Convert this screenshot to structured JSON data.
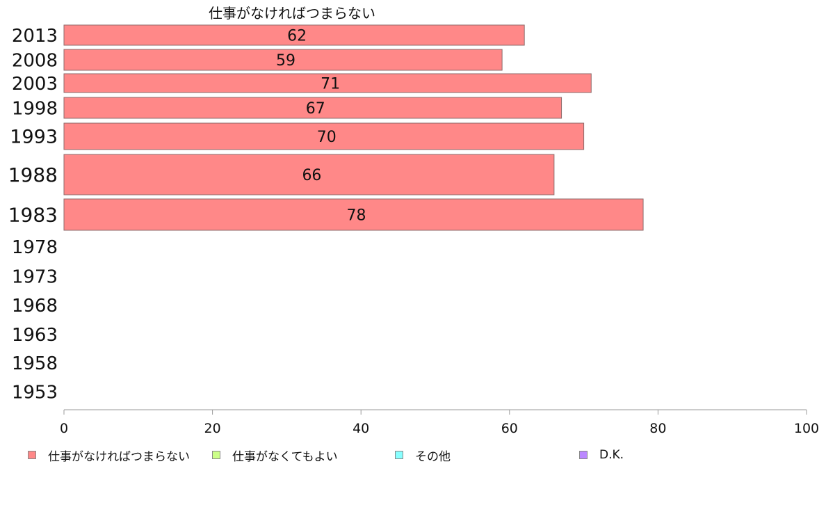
{
  "chart_data": {
    "type": "bar",
    "orientation": "horizontal",
    "title": "仕事がなければつまらない",
    "categories": [
      "2013",
      "2008",
      "2003",
      "1998",
      "1993",
      "1988",
      "1983",
      "1978",
      "1973",
      "1968",
      "1963",
      "1958",
      "1953"
    ],
    "series": [
      {
        "name": "仕事がなければつまらない",
        "color": "#ff8888",
        "values": [
          62,
          59,
          71,
          67,
          70,
          66,
          78,
          null,
          null,
          null,
          null,
          null,
          null
        ],
        "data_labels": [
          "62",
          "59",
          "71",
          "67",
          "70",
          "66",
          "78",
          "",
          "",
          "",
          "",
          "",
          ""
        ]
      },
      {
        "name": "仕事がなくてもよい",
        "color": "#ccff88",
        "values": [
          null,
          null,
          null,
          null,
          null,
          null,
          null,
          null,
          null,
          null,
          null,
          null,
          null
        ]
      },
      {
        "name": "その他",
        "color": "#88ffff",
        "values": [
          null,
          null,
          null,
          null,
          null,
          null,
          null,
          null,
          null,
          null,
          null,
          null,
          null
        ]
      },
      {
        "name": "D.K.",
        "color": "#bb88ff",
        "values": [
          null,
          null,
          null,
          null,
          null,
          null,
          null,
          null,
          null,
          null,
          null,
          null,
          null
        ]
      }
    ],
    "xlim": [
      0,
      100
    ],
    "xticks": [
      "0",
      "20",
      "40",
      "60",
      "80",
      "100"
    ],
    "grid": false,
    "legend_position": "bottom"
  }
}
